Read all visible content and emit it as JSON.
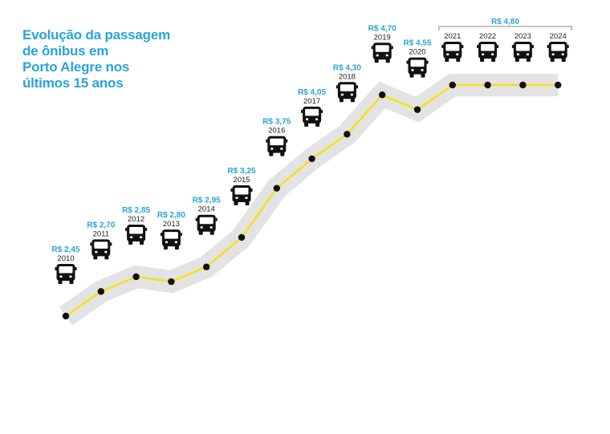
{
  "title_lines": [
    "Evolução da passagem",
    "de ônibus em",
    "Porto Alegre nos",
    "últimos 15 anos"
  ],
  "colors": {
    "accent": "#29a3d9",
    "line": "#f5e21b",
    "band": "#e3e3e3",
    "bus": "#111111"
  },
  "icon": "bus-icon",
  "chart_data": {
    "type": "line",
    "title": "Evolução da passagem de ônibus em Porto Alegre nos últimos 15 anos",
    "x": [
      "2010",
      "2011",
      "2012",
      "2013",
      "2014",
      "2015",
      "2016",
      "2017",
      "2018",
      "2019",
      "2020",
      "2021",
      "2022",
      "2023",
      "2024"
    ],
    "series": [
      {
        "values": [
          2.45,
          2.7,
          2.85,
          2.8,
          2.95,
          3.25,
          3.75,
          4.05,
          4.3,
          4.7,
          4.55,
          4.8,
          4.8,
          4.8,
          4.8
        ]
      }
    ],
    "price_labels": [
      "R$ 2,45",
      "R$ 2,70",
      "R$ 2,85",
      "R$ 2,80",
      "R$ 2,95",
      "R$ 3,25",
      "R$ 3,75",
      "R$ 4,05",
      "R$ 4,30",
      "R$ 4,70",
      "R$ 4,55",
      "",
      "",
      "",
      ""
    ],
    "bracket": {
      "label": "R$ 4,80",
      "from": "2021",
      "to": "2024"
    },
    "xlabel": "",
    "ylabel": "",
    "ylim": [
      2.45,
      4.8
    ],
    "grid": false
  }
}
